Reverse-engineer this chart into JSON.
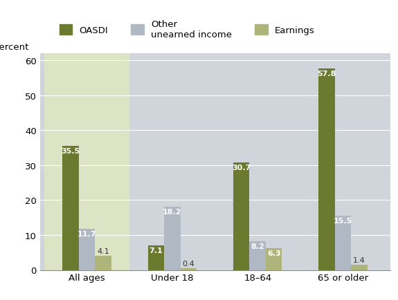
{
  "categories": [
    "All ages",
    "Under 18",
    "18–64",
    "65 or older"
  ],
  "series": {
    "OASDI": [
      35.5,
      7.1,
      30.7,
      57.8
    ],
    "Other unearned income": [
      11.7,
      18.2,
      8.2,
      15.5
    ],
    "Earnings": [
      4.1,
      0.4,
      6.3,
      1.4
    ]
  },
  "colors": {
    "OASDI": "#6b7a2e",
    "Other unearned income": "#b0b8c4",
    "Earnings": "#adb57a"
  },
  "bg_colors": [
    "#dde3c5",
    "#d0d5dc",
    "#d0d5dc",
    "#d0d5dc"
  ],
  "plot_bg": "#d0d5dc",
  "figure_bg": "#ffffff",
  "ylabel": "Percent",
  "ylim": [
    0,
    62
  ],
  "yticks": [
    0,
    10,
    20,
    30,
    40,
    50,
    60
  ],
  "legend_labels": [
    "OASDI",
    "Other\nunearned income",
    "Earnings"
  ],
  "bar_width": 0.19,
  "label_fontsize": 8.0,
  "tick_fontsize": 9.5,
  "legend_fontsize": 9.5
}
